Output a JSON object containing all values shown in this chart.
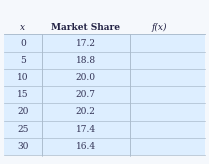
{
  "col_headers": [
    "x",
    "Market Share",
    "f(x)"
  ],
  "rows": [
    [
      0,
      17.2,
      ""
    ],
    [
      5,
      18.8,
      ""
    ],
    [
      10,
      20.0,
      ""
    ],
    [
      15,
      20.7,
      ""
    ],
    [
      20,
      20.2,
      ""
    ],
    [
      25,
      17.4,
      ""
    ],
    [
      30,
      16.4,
      ""
    ]
  ],
  "header_bg": "#ffffff",
  "row_bg": "#ddeeff",
  "text_color": "#333355",
  "header_text_color": "#222244",
  "figsize": [
    2.09,
    1.64
  ],
  "dpi": 100
}
